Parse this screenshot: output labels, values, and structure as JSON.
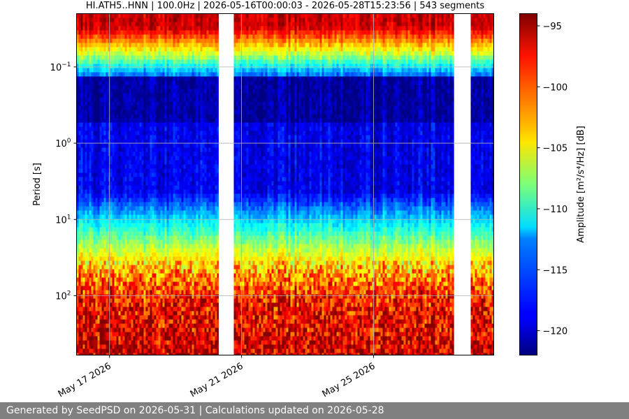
{
  "footer": {
    "text": "Generated by SeedPSD on 2026-05-31 | Calculations updated on 2026-05-28"
  },
  "chart_data": {
    "type": "heatmap",
    "title": "HI.ATH5..HNN | 100.0Hz | 2026-05-16T00:00:03 - 2026-05-28T15:23:56 | 543 segments",
    "xlabel": "",
    "ylabel": "Period [s]",
    "colorbar_label": "Amplitude [m²/s⁴/Hz] [dB]",
    "colormap": "jet",
    "x_range": [
      "2026-05-16T00:00:03",
      "2026-05-28T15:23:56"
    ],
    "y_scale": "log",
    "y_range": [
      0.02,
      600
    ],
    "y_ticks": [
      {
        "label": "10",
        "exp": "−1",
        "value": 0.1
      },
      {
        "label": "10",
        "exp": "0",
        "value": 1
      },
      {
        "label": "10",
        "exp": "1",
        "value": 10
      },
      {
        "label": "10",
        "exp": "2",
        "value": 100
      }
    ],
    "x_ticks": [
      {
        "label": "May 17 2026",
        "value": "2026-05-17"
      },
      {
        "label": "May 21 2026",
        "value": "2026-05-21"
      },
      {
        "label": "May 25 2026",
        "value": "2026-05-25"
      }
    ],
    "color_range": [
      -122,
      -94
    ],
    "colorbar_ticks": [
      -95,
      -100,
      -105,
      -110,
      -115,
      -120
    ],
    "gaps": [
      {
        "start": "2026-05-20T07:24",
        "end": "2026-05-20T17:30"
      },
      {
        "start": "2026-05-27T10:40",
        "end": "2026-05-27T21:50"
      }
    ],
    "grid": true,
    "legend": "none"
  }
}
